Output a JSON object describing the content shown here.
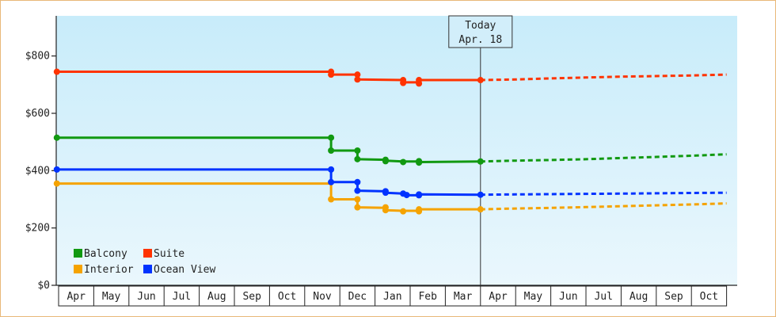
{
  "chart_data": {
    "type": "line",
    "title": "",
    "xlabel": "",
    "ylabel": "",
    "ylim": [
      0,
      940
    ],
    "y_ticks": [
      0,
      200,
      400,
      600,
      800
    ],
    "y_tick_labels": [
      "$0",
      "$200",
      "$400",
      "$600",
      "$800"
    ],
    "x_tick_labels": [
      "Apr",
      "May",
      "Jun",
      "Jul",
      "Aug",
      "Sep",
      "Oct",
      "Nov",
      "Dec",
      "Jan",
      "Feb",
      "Mar",
      "Apr",
      "May",
      "Jun",
      "Jul",
      "Aug",
      "Sep",
      "Oct"
    ],
    "grid": false,
    "legend_position": "bottom-left",
    "today_marker": {
      "line1": "Today",
      "line2": "Apr. 18",
      "x": 12.0
    },
    "colors": {
      "background_top": "#c8ecfa",
      "background_bottom": "#eaf7fd",
      "frame": "#e8b878"
    },
    "series": [
      {
        "name": "Balcony",
        "color": "#119911",
        "actual": [
          [
            -0.05,
            515
          ],
          [
            7.75,
            515
          ],
          [
            7.75,
            470
          ],
          [
            8.5,
            470
          ],
          [
            8.5,
            440
          ],
          [
            9.3,
            438
          ],
          [
            9.3,
            435
          ],
          [
            9.8,
            432
          ],
          [
            10.2,
            432
          ],
          [
            10.3,
            430
          ],
          [
            12.0,
            432
          ]
        ],
        "projected": [
          [
            12.0,
            432
          ],
          [
            13.0,
            435
          ],
          [
            14.0,
            437
          ],
          [
            15.0,
            440
          ],
          [
            16.0,
            444
          ],
          [
            17.0,
            448
          ],
          [
            18.0,
            452
          ],
          [
            19.0,
            457
          ]
        ]
      },
      {
        "name": "Suite",
        "color": "#ff3300",
        "actual": [
          [
            -0.05,
            745
          ],
          [
            7.75,
            745
          ],
          [
            7.75,
            735
          ],
          [
            8.5,
            735
          ],
          [
            8.5,
            718
          ],
          [
            9.8,
            716
          ],
          [
            9.8,
            708
          ],
          [
            10.25,
            708
          ],
          [
            10.25,
            716
          ],
          [
            12.0,
            716
          ]
        ],
        "projected": [
          [
            12.0,
            716
          ],
          [
            13.0,
            718
          ],
          [
            14.0,
            722
          ],
          [
            15.0,
            725
          ],
          [
            16.0,
            728
          ],
          [
            17.0,
            730
          ],
          [
            18.0,
            732
          ],
          [
            19.0,
            735
          ]
        ]
      },
      {
        "name": "Interior",
        "color": "#f5a300",
        "actual": [
          [
            -0.05,
            355
          ],
          [
            7.75,
            355
          ],
          [
            7.75,
            300
          ],
          [
            8.5,
            300
          ],
          [
            8.5,
            272
          ],
          [
            9.3,
            270
          ],
          [
            9.3,
            262
          ],
          [
            9.8,
            260
          ],
          [
            10.2,
            260
          ],
          [
            10.3,
            265
          ],
          [
            12.0,
            265
          ]
        ],
        "projected": [
          [
            12.0,
            265
          ],
          [
            13.0,
            268
          ],
          [
            14.0,
            270
          ],
          [
            15.0,
            273
          ],
          [
            16.0,
            276
          ],
          [
            17.0,
            279
          ],
          [
            18.0,
            282
          ],
          [
            19.0,
            286
          ]
        ]
      },
      {
        "name": "Ocean View",
        "color": "#0033ff",
        "actual": [
          [
            -0.05,
            404
          ],
          [
            7.75,
            404
          ],
          [
            7.75,
            360
          ],
          [
            8.5,
            360
          ],
          [
            8.5,
            330
          ],
          [
            9.3,
            328
          ],
          [
            9.3,
            323
          ],
          [
            9.8,
            320
          ],
          [
            9.9,
            314
          ],
          [
            10.2,
            314
          ],
          [
            10.3,
            317
          ],
          [
            12.0,
            316
          ]
        ],
        "projected": [
          [
            12.0,
            316
          ],
          [
            13.0,
            317
          ],
          [
            14.0,
            318
          ],
          [
            15.0,
            319
          ],
          [
            16.0,
            320
          ],
          [
            17.0,
            321
          ],
          [
            18.0,
            322
          ],
          [
            19.0,
            323
          ]
        ]
      }
    ],
    "markers": [
      {
        "series": "Balcony",
        "points": [
          [
            -0.05,
            515
          ],
          [
            7.75,
            515
          ],
          [
            7.75,
            470
          ],
          [
            8.5,
            470
          ],
          [
            8.5,
            440
          ],
          [
            9.3,
            438
          ],
          [
            9.3,
            433
          ],
          [
            9.8,
            430
          ],
          [
            10.25,
            428
          ],
          [
            10.25,
            433
          ],
          [
            12.0,
            432
          ]
        ]
      },
      {
        "series": "Suite",
        "points": [
          [
            -0.05,
            745
          ],
          [
            7.75,
            745
          ],
          [
            7.75,
            735
          ],
          [
            8.5,
            735
          ],
          [
            8.5,
            718
          ],
          [
            9.8,
            716
          ],
          [
            9.8,
            706
          ],
          [
            10.25,
            704
          ],
          [
            10.25,
            716
          ],
          [
            12.0,
            716
          ]
        ]
      },
      {
        "series": "Interior",
        "points": [
          [
            -0.05,
            355
          ],
          [
            7.75,
            300
          ],
          [
            8.5,
            300
          ],
          [
            8.5,
            272
          ],
          [
            9.3,
            272
          ],
          [
            9.3,
            262
          ],
          [
            9.8,
            258
          ],
          [
            10.25,
            258
          ],
          [
            10.25,
            265
          ],
          [
            12.0,
            265
          ]
        ]
      },
      {
        "series": "Ocean View",
        "points": [
          [
            -0.05,
            404
          ],
          [
            7.75,
            404
          ],
          [
            7.75,
            360
          ],
          [
            8.5,
            360
          ],
          [
            8.5,
            330
          ],
          [
            9.3,
            328
          ],
          [
            9.3,
            323
          ],
          [
            9.8,
            320
          ],
          [
            9.9,
            315
          ],
          [
            10.25,
            314
          ],
          [
            10.25,
            317
          ],
          [
            12.0,
            316
          ]
        ]
      }
    ],
    "legend": [
      {
        "name": "Balcony",
        "color": "#119911"
      },
      {
        "name": "Suite",
        "color": "#ff3300"
      },
      {
        "name": "Interior",
        "color": "#f5a300"
      },
      {
        "name": "Ocean View",
        "color": "#0033ff"
      }
    ]
  }
}
